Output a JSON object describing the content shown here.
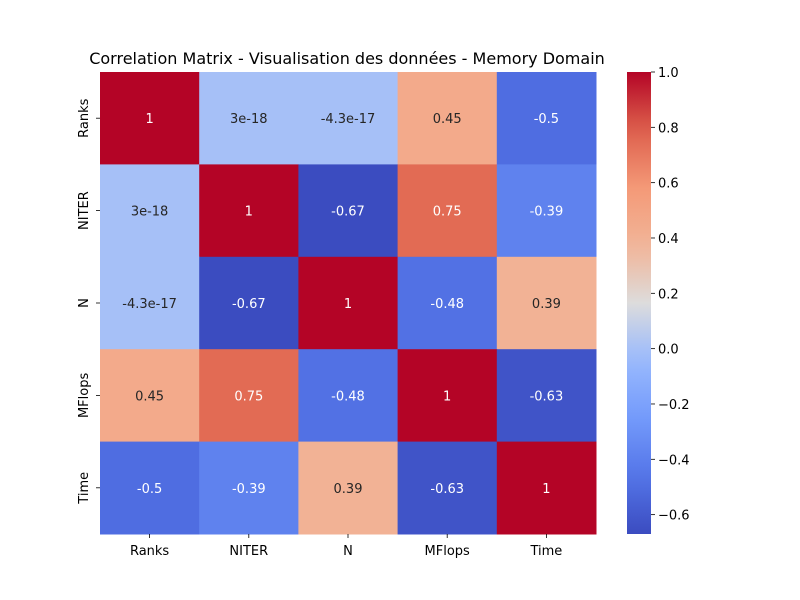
{
  "chart_data": {
    "type": "heatmap",
    "title": "Correlation Matrix - Visualisation des données - Memory Domain",
    "xlabel": "",
    "ylabel": "",
    "x_categories": [
      "Ranks",
      "NITER",
      "N",
      "MFlops",
      "Time"
    ],
    "y_categories": [
      "Ranks",
      "NITER",
      "N",
      "MFlops",
      "Time"
    ],
    "values": [
      [
        1,
        3e-18,
        -4.3e-17,
        0.45,
        -0.5
      ],
      [
        3e-18,
        1,
        -0.67,
        0.75,
        -0.39
      ],
      [
        -4.3e-17,
        -0.67,
        1,
        -0.48,
        0.39
      ],
      [
        0.45,
        0.75,
        -0.48,
        1,
        -0.63
      ],
      [
        -0.5,
        -0.39,
        0.39,
        -0.63,
        1
      ]
    ],
    "cell_labels": [
      [
        "1",
        "3e-18",
        "-4.3e-17",
        "0.45",
        "-0.5"
      ],
      [
        "3e-18",
        "1",
        "-0.67",
        "0.75",
        "-0.39"
      ],
      [
        "-4.3e-17",
        "-0.67",
        "1",
        "-0.48",
        "0.39"
      ],
      [
        "0.45",
        "0.75",
        "-0.48",
        "1",
        "-0.63"
      ],
      [
        "-0.5",
        "-0.39",
        "0.39",
        "-0.63",
        "1"
      ]
    ],
    "colormap": "coolwarm",
    "color_range": [
      -0.67,
      1.0
    ],
    "colorbar_ticks": [
      -0.6,
      -0.4,
      -0.2,
      0.0,
      0.2,
      0.4,
      0.6,
      0.8,
      1.0
    ],
    "colorbar_tick_labels": [
      "−0.6",
      "−0.4",
      "−0.2",
      "0.0",
      "0.2",
      "0.4",
      "0.6",
      "0.8",
      "1.0"
    ],
    "grid": false,
    "legend": "colorbar-right"
  }
}
